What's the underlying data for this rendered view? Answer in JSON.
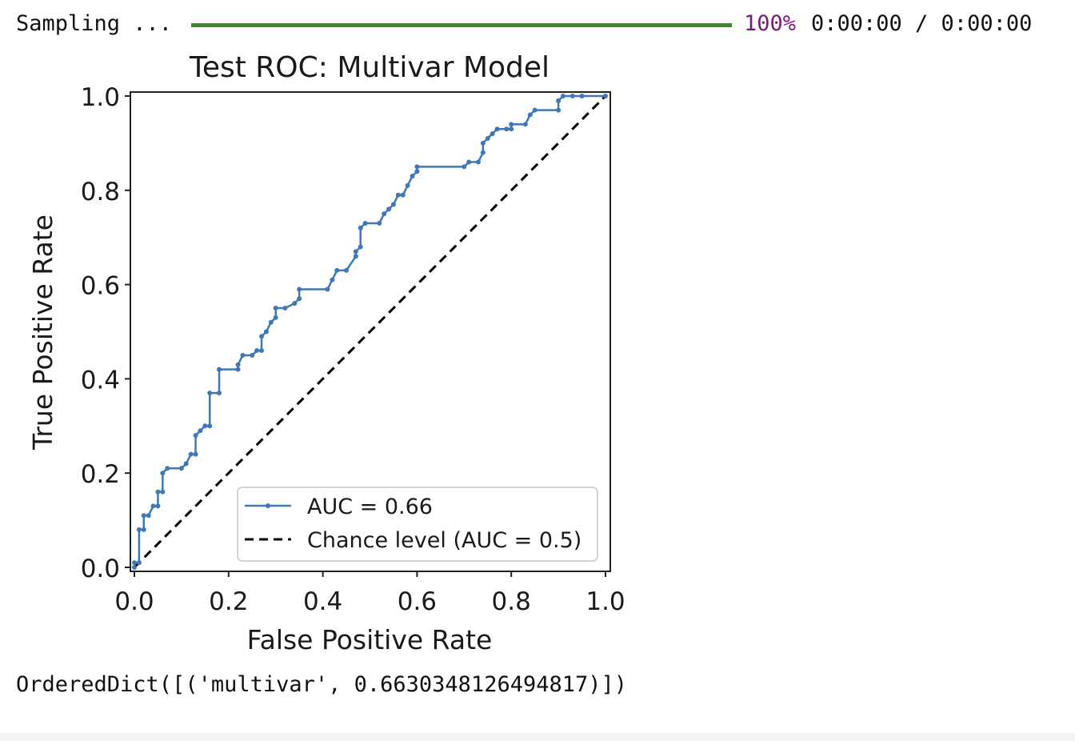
{
  "progress": {
    "label": "Sampling ...",
    "percent_text": "100%",
    "fraction": 1.0,
    "time_text": "0:00:00 / 0:00:00",
    "bar_color": "#3a8a2c",
    "percent_color": "#80197f"
  },
  "chart_data": {
    "type": "line",
    "title": "Test ROC: Multivar Model",
    "xlabel": "False Positive Rate",
    "ylabel": "True Positive Rate",
    "xlim": [
      0,
      1
    ],
    "ylim": [
      0,
      1
    ],
    "xticks": [
      "0.0",
      "0.2",
      "0.4",
      "0.6",
      "0.8",
      "1.0"
    ],
    "yticks": [
      "0.0",
      "0.2",
      "0.4",
      "0.6",
      "0.8",
      "1.0"
    ],
    "grid": false,
    "legend_position": "lower-right",
    "series": [
      {
        "name": "AUC = 0.66",
        "color": "#3f78b5",
        "style": "solid-with-dots",
        "x": [
          0.0,
          0.0,
          0.01,
          0.01,
          0.02,
          0.02,
          0.03,
          0.04,
          0.05,
          0.05,
          0.06,
          0.06,
          0.07,
          0.1,
          0.11,
          0.12,
          0.13,
          0.13,
          0.14,
          0.15,
          0.16,
          0.16,
          0.18,
          0.18,
          0.22,
          0.22,
          0.23,
          0.25,
          0.26,
          0.27,
          0.27,
          0.28,
          0.29,
          0.3,
          0.3,
          0.32,
          0.34,
          0.35,
          0.35,
          0.41,
          0.42,
          0.43,
          0.45,
          0.47,
          0.47,
          0.48,
          0.48,
          0.49,
          0.52,
          0.53,
          0.54,
          0.55,
          0.56,
          0.57,
          0.58,
          0.59,
          0.6,
          0.6,
          0.7,
          0.71,
          0.73,
          0.74,
          0.74,
          0.75,
          0.76,
          0.77,
          0.79,
          0.8,
          0.8,
          0.83,
          0.84,
          0.85,
          0.9,
          0.9,
          0.91,
          0.93,
          0.95,
          1.0
        ],
        "y": [
          0.0,
          0.01,
          0.01,
          0.08,
          0.08,
          0.11,
          0.11,
          0.13,
          0.13,
          0.16,
          0.16,
          0.2,
          0.21,
          0.21,
          0.22,
          0.24,
          0.24,
          0.28,
          0.29,
          0.3,
          0.3,
          0.37,
          0.37,
          0.42,
          0.42,
          0.43,
          0.45,
          0.45,
          0.46,
          0.46,
          0.49,
          0.5,
          0.52,
          0.53,
          0.55,
          0.55,
          0.56,
          0.57,
          0.59,
          0.59,
          0.61,
          0.63,
          0.63,
          0.66,
          0.67,
          0.68,
          0.72,
          0.73,
          0.73,
          0.75,
          0.76,
          0.77,
          0.79,
          0.79,
          0.81,
          0.83,
          0.84,
          0.85,
          0.85,
          0.86,
          0.86,
          0.88,
          0.9,
          0.91,
          0.92,
          0.93,
          0.93,
          0.93,
          0.94,
          0.94,
          0.96,
          0.97,
          0.97,
          0.99,
          1.0,
          1.0,
          1.0,
          1.0
        ]
      },
      {
        "name": "Chance level (AUC = 0.5)",
        "color": "#000000",
        "style": "dashed",
        "x": [
          0,
          1
        ],
        "y": [
          0,
          1
        ]
      }
    ]
  },
  "output": {
    "text": "OrderedDict([('multivar', 0.6630348126494817)])"
  }
}
